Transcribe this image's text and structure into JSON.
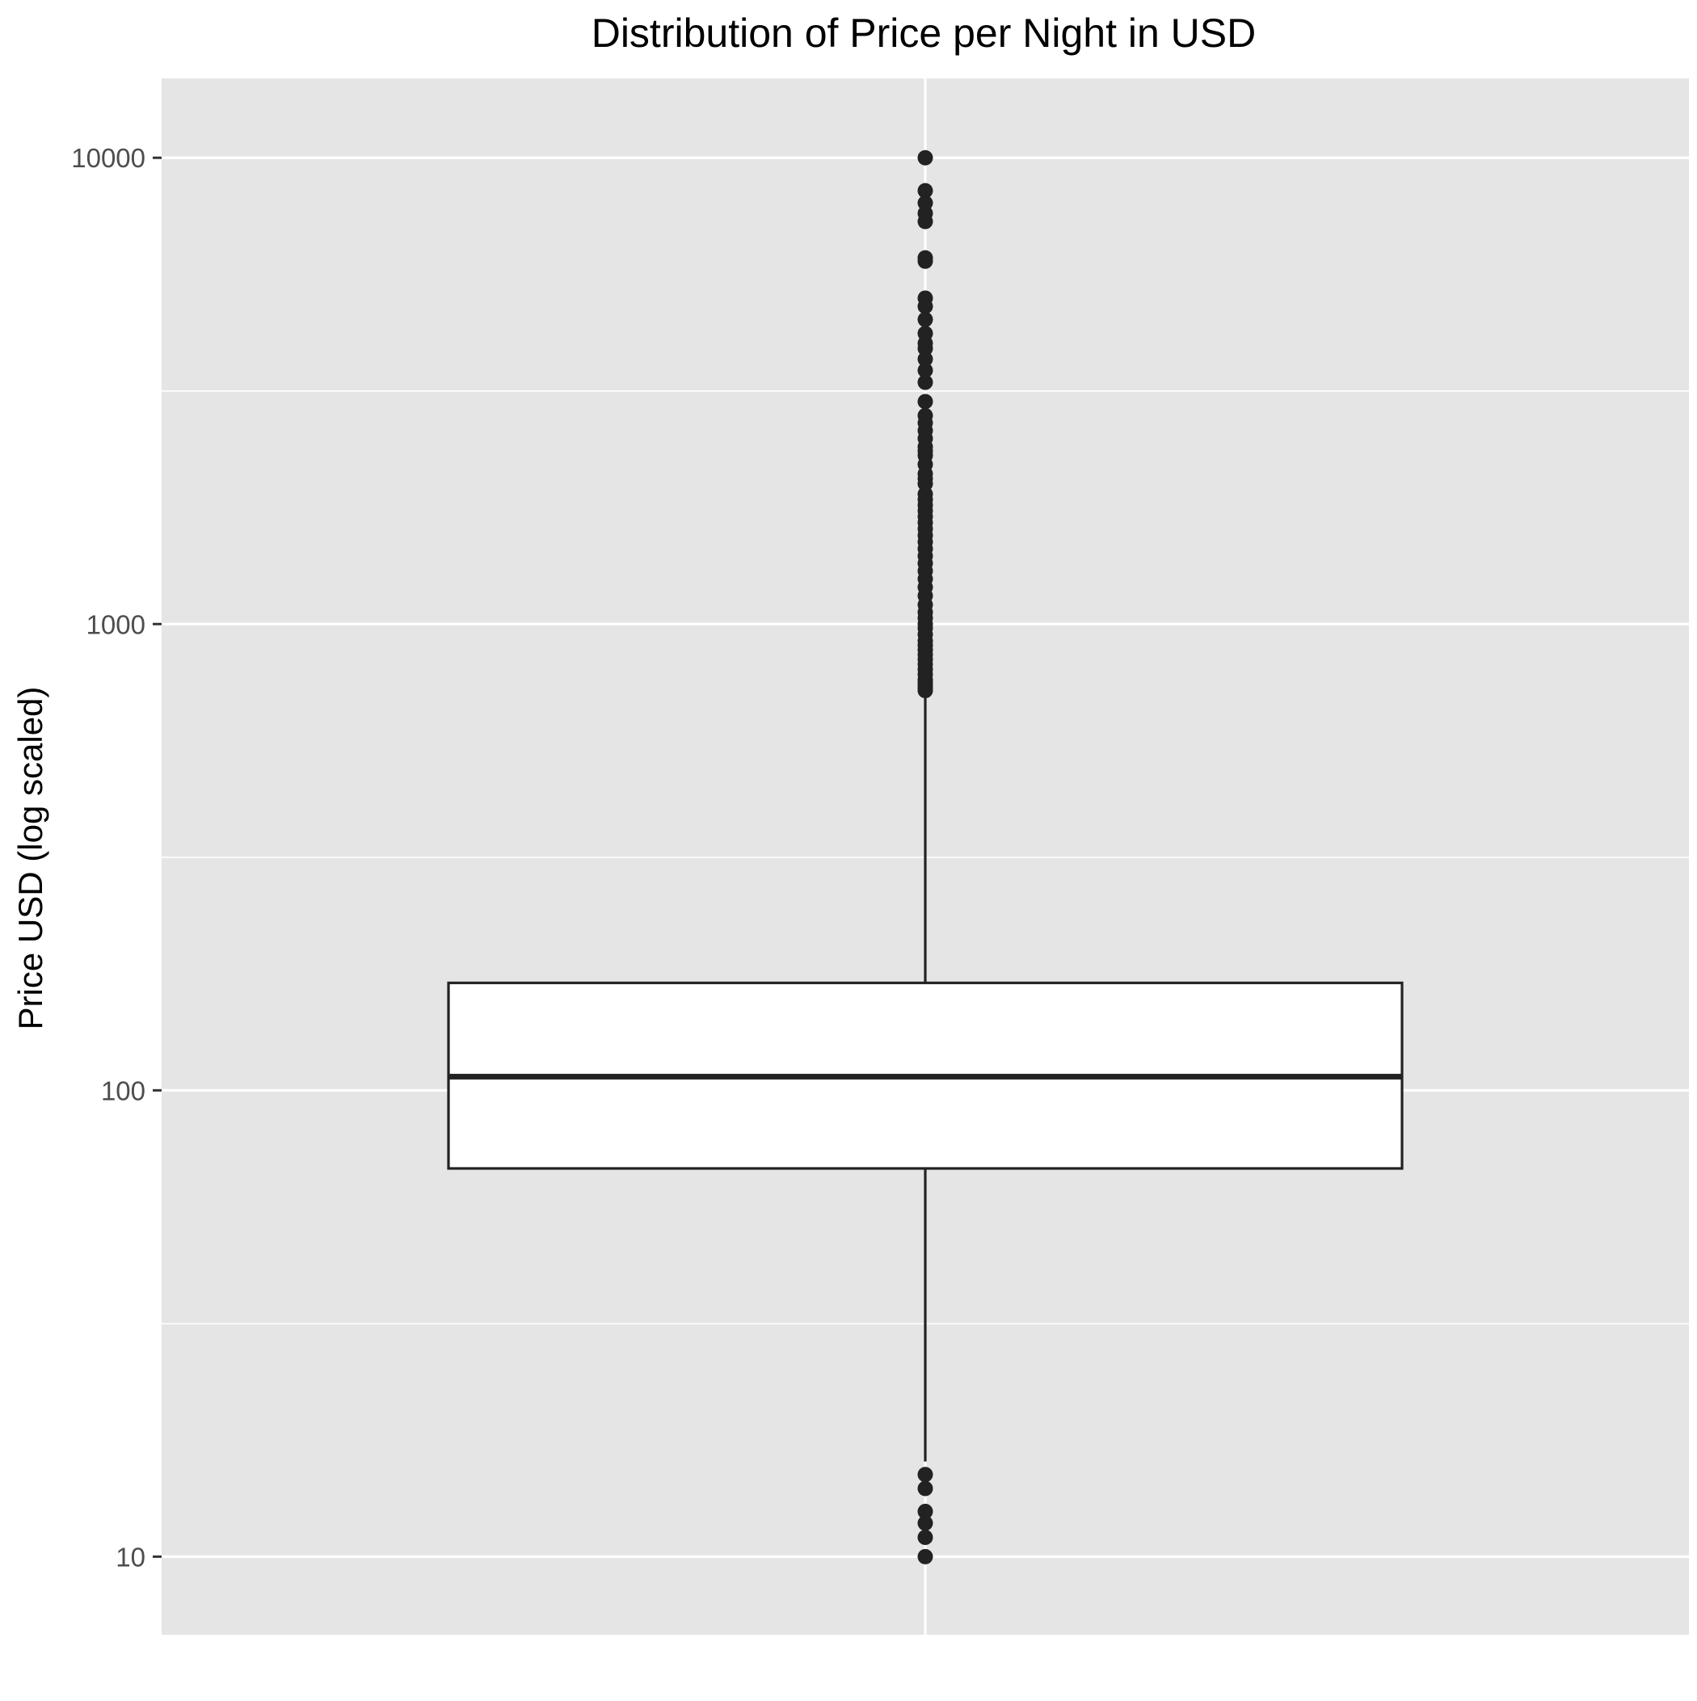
{
  "chart_data": {
    "type": "box",
    "title": "Distribution of Price per Night in USD",
    "xlabel": "",
    "ylabel": "Price USD (log scaled)",
    "y_scale": "log10",
    "ylim": [
      6.8,
      14800
    ],
    "y_ticks": [
      {
        "value": 10,
        "label": "10"
      },
      {
        "value": 100,
        "label": "100"
      },
      {
        "value": 1000,
        "label": "1000"
      },
      {
        "value": 10000,
        "label": "10000"
      }
    ],
    "y_minor_gridlines": [
      31.6,
      316,
      3160
    ],
    "grid": true,
    "legend": "none",
    "colors": {
      "panel": "#e5e5e5",
      "grid": "#ffffff",
      "box_fill": "#ffffff",
      "box_stroke": "#222222",
      "points": "#222222",
      "axis_text": "#4d4d4d",
      "title_text": "#000000"
    },
    "box": {
      "whisker_low": 16,
      "q1": 68,
      "median": 107,
      "q3": 170,
      "whisker_high": 705
    },
    "outliers_high": [
      720,
      730,
      740,
      750,
      760,
      780,
      800,
      820,
      840,
      860,
      880,
      900,
      920,
      950,
      980,
      1000,
      1030,
      1060,
      1100,
      1150,
      1200,
      1250,
      1300,
      1350,
      1400,
      1450,
      1500,
      1550,
      1600,
      1650,
      1700,
      1750,
      1800,
      1850,
      1900,
      2000,
      2050,
      2100,
      2200,
      2300,
      2350,
      2400,
      2500,
      2600,
      2700,
      2800,
      3000,
      3300,
      3500,
      3700,
      3900,
      4000,
      4200,
      4500,
      4800,
      5000,
      6000,
      6100,
      7300,
      7600,
      8000,
      8500,
      10000
    ],
    "outliers_low": [
      15,
      14,
      12.5,
      11.8,
      11,
      10
    ]
  }
}
